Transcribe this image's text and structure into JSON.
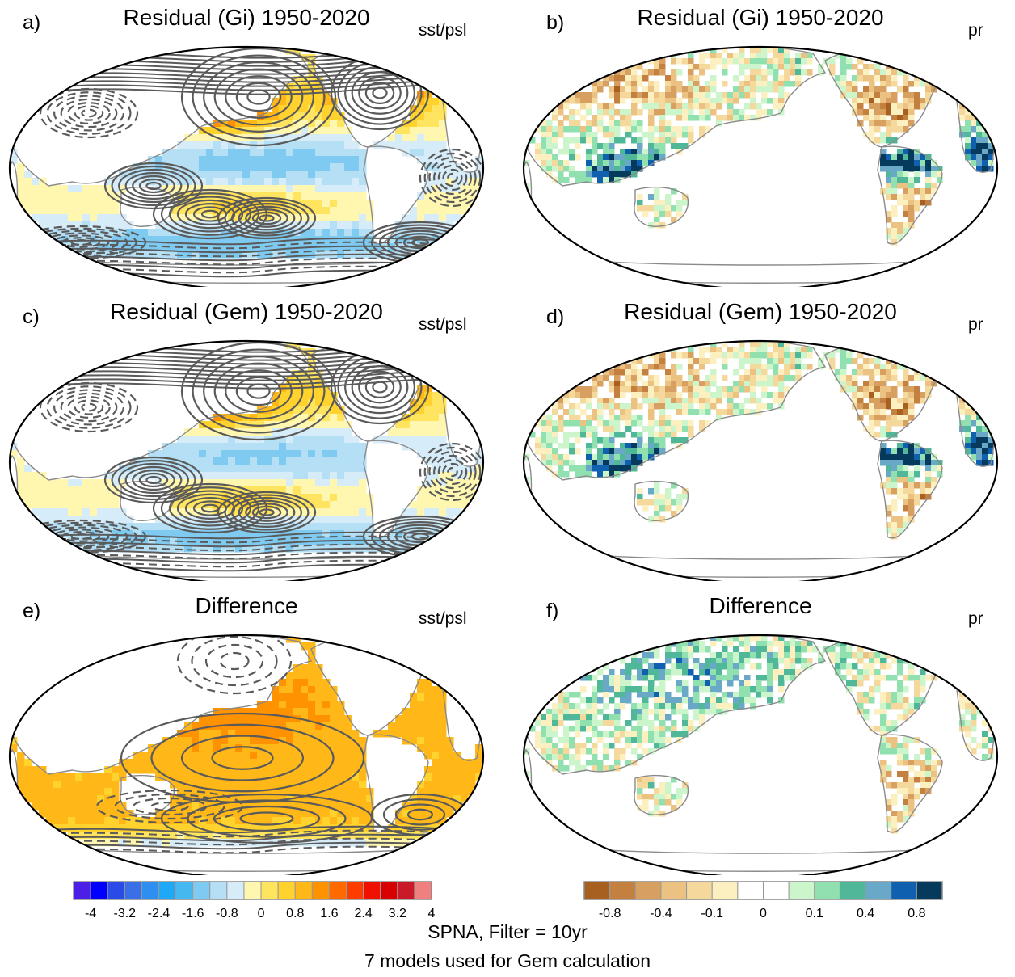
{
  "panels": [
    {
      "letter": "a)",
      "title": "Residual (Gi) 1950-2020",
      "variable": "sst/psl",
      "kind": "sst"
    },
    {
      "letter": "b)",
      "title": "Residual (Gi) 1950-2020",
      "variable": "pr",
      "kind": "pr"
    },
    {
      "letter": "c)",
      "title": "Residual (Gem) 1950-2020",
      "variable": "sst/psl",
      "kind": "sst"
    },
    {
      "letter": "d)",
      "title": "Residual (Gem) 1950-2020",
      "variable": "pr",
      "kind": "pr"
    },
    {
      "letter": "e)",
      "title": "Difference",
      "variable": "sst/psl",
      "kind": "sst"
    },
    {
      "letter": "f)",
      "title": "Difference",
      "variable": "pr",
      "kind": "pr"
    }
  ],
  "footer": {
    "line1": "SPNA, Filter = 10yr",
    "line2": "7 models used for Gem calculation"
  },
  "colorbars": {
    "sst": {
      "colors": [
        "#4b1fe6",
        "#0000ff",
        "#2a4be6",
        "#3a6fe8",
        "#2f8ff0",
        "#1fa8f5",
        "#45b8f2",
        "#7ecaf0",
        "#b5dff4",
        "#d6ecf8",
        "#fff6b0",
        "#ffe460",
        "#ffd22e",
        "#ffb818",
        "#ff9200",
        "#ff6a00",
        "#ff3c00",
        "#f01000",
        "#d80000",
        "#c81a28",
        "#f08080"
      ],
      "tick_labels": [
        "-4",
        "-3.2",
        "-2.4",
        "-1.6",
        "-0.8",
        "0",
        "0.8",
        "1.6",
        "2.4",
        "3.2",
        "4"
      ]
    },
    "pr": {
      "colors": [
        "#a86020",
        "#c4803e",
        "#d8a060",
        "#ecc282",
        "#f4d89c",
        "#fcefc0",
        "#ffffff",
        "#ffffff",
        "#ccf5cc",
        "#90e0b0",
        "#50b898",
        "#6aa8c8",
        "#1060b0",
        "#063a5c"
      ],
      "tick_labels": [
        "-0.8",
        "-0.4",
        "-0.1",
        "0",
        "0.1",
        "0.4",
        "0.8"
      ]
    }
  },
  "chart_data": [
    {
      "type": "heatmap",
      "panel": "a)",
      "title": "Residual (Gi) 1950-2020",
      "variable": "sst/psl",
      "color_range": [
        -4,
        4
      ],
      "pattern": {
        "north_pacific": "warm",
        "north_atlantic": "warm",
        "tropics": "cool",
        "southern_ocean": "cool"
      }
    },
    {
      "type": "heatmap",
      "panel": "b)",
      "title": "Residual (Gi) 1950-2020",
      "variable": "pr",
      "color_range": [
        -0.8,
        0.8
      ],
      "pattern": {
        "north_america": "dry",
        "amazon": "wet",
        "europe": "dry"
      }
    },
    {
      "type": "heatmap",
      "panel": "c)",
      "title": "Residual (Gem) 1950-2020",
      "variable": "sst/psl",
      "color_range": [
        -4,
        4
      ],
      "pattern": {
        "north_pacific": "warm",
        "north_atlantic": "warm",
        "tropics": "cool",
        "southern_ocean": "cool"
      }
    },
    {
      "type": "heatmap",
      "panel": "d)",
      "title": "Residual (Gem) 1950-2020",
      "variable": "pr",
      "color_range": [
        -0.8,
        0.8
      ],
      "pattern": {
        "north_america": "dry",
        "amazon": "wet",
        "europe": "dry"
      }
    },
    {
      "type": "heatmap",
      "panel": "e)",
      "title": "Difference",
      "variable": "sst/psl",
      "color_range": [
        -4,
        4
      ],
      "pattern": {
        "global_ocean": "warm",
        "southern_ocean": "cool"
      }
    },
    {
      "type": "heatmap",
      "panel": "f)",
      "title": "Difference",
      "variable": "pr",
      "color_range": [
        -0.8,
        0.8
      ],
      "pattern": {
        "asia": "wet",
        "amazon": "dry"
      }
    }
  ]
}
